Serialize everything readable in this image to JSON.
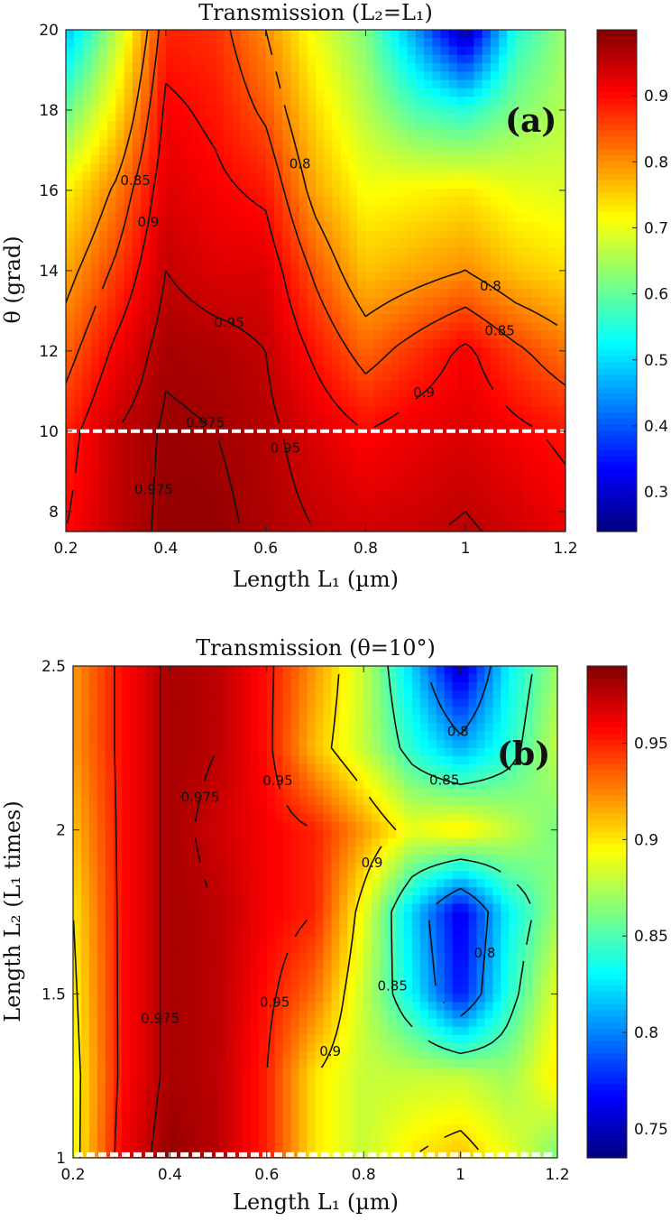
{
  "chart_data": [
    {
      "type": "heatmap",
      "panel_label": "(a)",
      "title": "Transmission  (L₂=L₁)",
      "xlabel": "Length L₁  (µm)",
      "ylabel": "θ  (grad)",
      "xlim": [
        0.2,
        1.2
      ],
      "ylim": [
        7.5,
        20
      ],
      "xticks": [
        "0.2",
        "0.4",
        "0.6",
        "0.8",
        "1",
        "1.2"
      ],
      "yticks": [
        "8",
        "10",
        "12",
        "14",
        "16",
        "18",
        "20"
      ],
      "colorbar": {
        "range": [
          0.24,
          1.0
        ],
        "ticks": [
          "0.3",
          "0.4",
          "0.5",
          "0.6",
          "0.7",
          "0.8",
          "0.9"
        ]
      },
      "contour_levels": [
        "0.8",
        "0.85",
        "0.9",
        "0.95",
        "0.975"
      ],
      "dashed_line": {
        "axis": "y",
        "value": 10
      },
      "x": [
        0.2,
        0.3,
        0.4,
        0.5,
        0.6,
        0.7,
        0.8,
        0.9,
        1.0,
        1.1,
        1.2
      ],
      "y": [
        7.5,
        10,
        12,
        14,
        16,
        18,
        20
      ],
      "z": [
        [
          0.9,
          0.95,
          0.985,
          0.985,
          0.965,
          0.95,
          0.94,
          0.945,
          0.955,
          0.94,
          0.92
        ],
        [
          0.88,
          0.95,
          0.98,
          0.975,
          0.96,
          0.93,
          0.9,
          0.92,
          0.93,
          0.91,
          0.89
        ],
        [
          0.83,
          0.91,
          0.97,
          0.965,
          0.95,
          0.89,
          0.83,
          0.87,
          0.91,
          0.86,
          0.82
        ],
        [
          0.78,
          0.86,
          0.95,
          0.93,
          0.93,
          0.84,
          0.76,
          0.78,
          0.8,
          0.76,
          0.74
        ],
        [
          0.72,
          0.81,
          0.93,
          0.91,
          0.89,
          0.78,
          0.71,
          0.72,
          0.73,
          0.7,
          0.69
        ],
        [
          0.6,
          0.73,
          0.91,
          0.89,
          0.84,
          0.74,
          0.66,
          0.58,
          0.55,
          0.62,
          0.66
        ],
        [
          0.47,
          0.66,
          0.88,
          0.87,
          0.8,
          0.7,
          0.62,
          0.45,
          0.26,
          0.55,
          0.64
        ]
      ]
    },
    {
      "type": "heatmap",
      "panel_label": "(b)",
      "title": "Transmission  (θ=10°)",
      "xlabel": "Length L₁  (µm)",
      "ylabel": "Length L₂  (L₁ times)",
      "xlim": [
        0.2,
        1.2
      ],
      "ylim": [
        1,
        2.5
      ],
      "xticks": [
        "0.2",
        "0.4",
        "0.6",
        "0.8",
        "1",
        "1.2"
      ],
      "yticks": [
        "1",
        "1.5",
        "2",
        "2.5"
      ],
      "colorbar": {
        "range": [
          0.735,
          0.99
        ],
        "ticks": [
          "0.75",
          "0.8",
          "0.85",
          "0.9",
          "0.95"
        ]
      },
      "contour_levels": [
        "0.8",
        "0.85",
        "0.9",
        "0.95",
        "0.975"
      ],
      "dashed_line": {
        "axis": "y",
        "value": 1.01
      },
      "x": [
        0.2,
        0.3,
        0.4,
        0.5,
        0.6,
        0.7,
        0.8,
        0.9,
        1.0,
        1.1,
        1.2
      ],
      "y": [
        1.0,
        1.25,
        1.5,
        1.75,
        2.0,
        2.25,
        2.5
      ],
      "z": [
        [
          0.89,
          0.96,
          0.985,
          0.975,
          0.95,
          0.9,
          0.88,
          0.9,
          0.91,
          0.89,
          0.86
        ],
        [
          0.89,
          0.955,
          0.98,
          0.975,
          0.95,
          0.9,
          0.88,
          0.88,
          0.88,
          0.87,
          0.9
        ],
        [
          0.895,
          0.955,
          0.98,
          0.975,
          0.955,
          0.93,
          0.88,
          0.83,
          0.77,
          0.84,
          0.89
        ],
        [
          0.9,
          0.955,
          0.98,
          0.975,
          0.96,
          0.95,
          0.89,
          0.82,
          0.76,
          0.83,
          0.87
        ],
        [
          0.91,
          0.955,
          0.98,
          0.97,
          0.96,
          0.95,
          0.92,
          0.89,
          0.9,
          0.88,
          0.86
        ],
        [
          0.92,
          0.955,
          0.98,
          0.975,
          0.955,
          0.91,
          0.88,
          0.84,
          0.81,
          0.84,
          0.88
        ],
        [
          0.92,
          0.955,
          0.98,
          0.975,
          0.955,
          0.92,
          0.88,
          0.82,
          0.75,
          0.83,
          0.87
        ]
      ]
    }
  ]
}
